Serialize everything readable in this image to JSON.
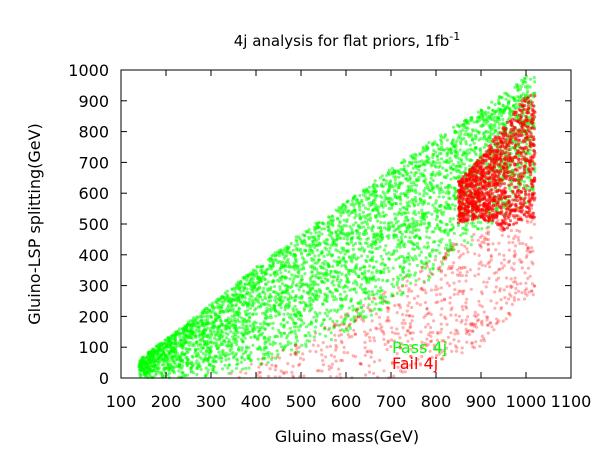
{
  "chart_data": {
    "type": "scatter",
    "title": "4j analysis for flat priors, 1fb",
    "title_superscript": "-1",
    "xlabel": "Gluino mass(GeV)",
    "ylabel": "Gluino-LSP splitting(GeV)",
    "xlim": [
      100,
      1100
    ],
    "ylim": [
      0,
      1000
    ],
    "x_ticks": [
      100,
      200,
      300,
      400,
      500,
      600,
      700,
      800,
      900,
      1000,
      1100
    ],
    "y_ticks": [
      0,
      100,
      200,
      300,
      400,
      500,
      600,
      700,
      800,
      900,
      1000
    ],
    "grid": false,
    "legend_position": "bottom-right-inside",
    "series": [
      {
        "name": "Pass 4j",
        "color": "#00ff00",
        "region": {
          "x_range": [
            140,
            1020
          ],
          "y_min_by_x": [
            [
              140,
              0
            ],
            [
              300,
              0
            ],
            [
              400,
              30
            ],
            [
              500,
              80
            ],
            [
              600,
              140
            ],
            [
              700,
              240
            ],
            [
              800,
              330
            ],
            [
              900,
              460
            ],
            [
              1000,
              560
            ]
          ],
          "y_max_by_x": [
            [
              140,
              60
            ],
            [
              300,
              240
            ],
            [
              400,
              360
            ],
            [
              500,
              470
            ],
            [
              600,
              570
            ],
            [
              700,
              680
            ],
            [
              800,
              780
            ],
            [
              900,
              870
            ],
            [
              1000,
              980
            ]
          ]
        }
      },
      {
        "name": "Fail 4j",
        "color": "#ff0000",
        "region": {
          "x_range": [
            340,
            1020
          ],
          "core_y_min_by_x": [
            [
              850,
              500
            ],
            [
              900,
              520
            ],
            [
              950,
              480
            ],
            [
              1000,
              520
            ]
          ],
          "core_y_max_by_x": [
            [
              850,
              640
            ],
            [
              900,
              720
            ],
            [
              950,
              820
            ],
            [
              1000,
              920
            ]
          ],
          "sparse_y_min_by_x": [
            [
              350,
              0
            ],
            [
              500,
              0
            ],
            [
              700,
              0
            ],
            [
              900,
              100
            ],
            [
              1000,
              260
            ]
          ],
          "sparse_y_max_by_x": [
            [
              350,
              20
            ],
            [
              500,
              120
            ],
            [
              700,
              300
            ],
            [
              900,
              500
            ],
            [
              1000,
              600
            ]
          ]
        }
      }
    ]
  }
}
